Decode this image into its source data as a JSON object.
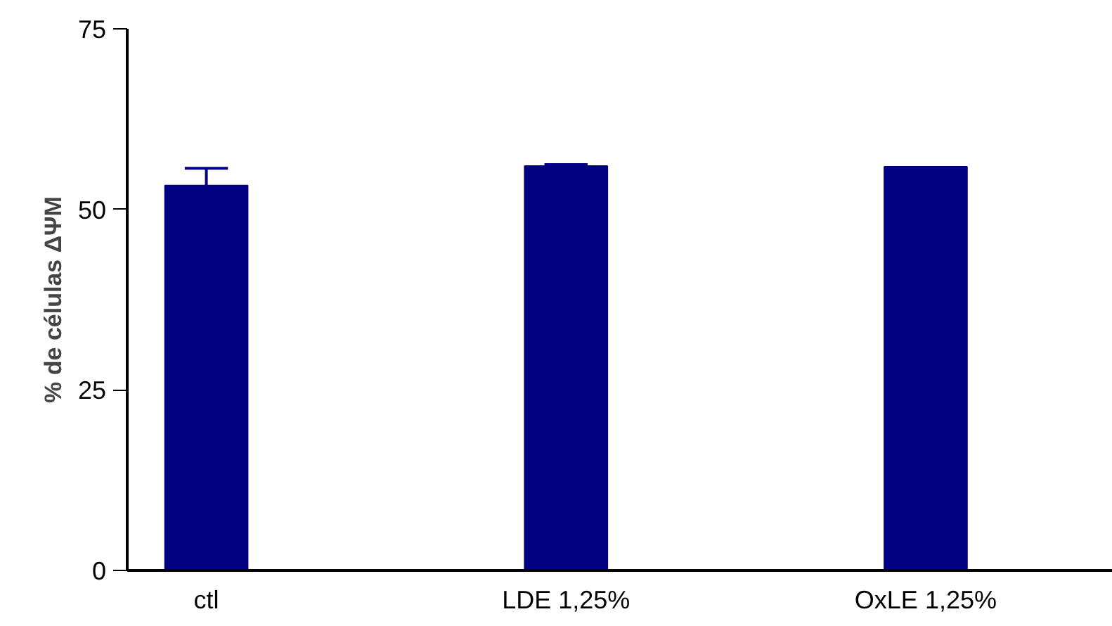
{
  "chart_data": {
    "type": "bar",
    "ylabel": "% de células ΔΨM",
    "categories": [
      "ctl",
      "LDE 1,25%",
      "OxLE 1,25%"
    ],
    "values": [
      53.3,
      56.0,
      55.9
    ],
    "errors": [
      2.4,
      0.2,
      null
    ],
    "color": "#000080",
    "ylim": [
      0,
      75
    ],
    "yticks": [
      0,
      25,
      50,
      75
    ],
    "grid": false
  }
}
